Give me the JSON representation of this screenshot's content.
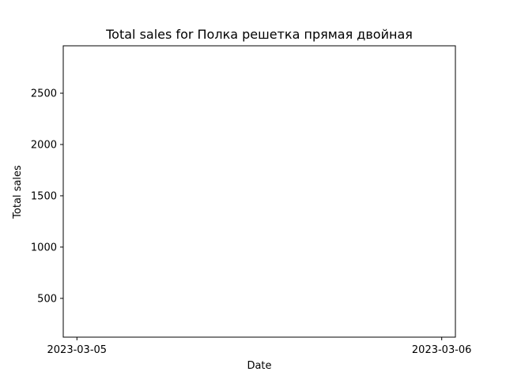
{
  "chart_data": {
    "type": "line",
    "title": "Total sales for Полка решетка прямая двойная",
    "xlabel": "Date",
    "ylabel": "Total sales",
    "x_ticks": [
      "2023-03-05",
      "2023-03-06"
    ],
    "xlim": [
      "2023-03-04T23:06:00",
      "2023-03-06T00:54:00"
    ],
    "y_ticks": [
      500,
      1000,
      1500,
      2000,
      2500
    ],
    "ylim": [
      122,
      2962
    ],
    "series": [],
    "grid": false,
    "legend": "none"
  }
}
